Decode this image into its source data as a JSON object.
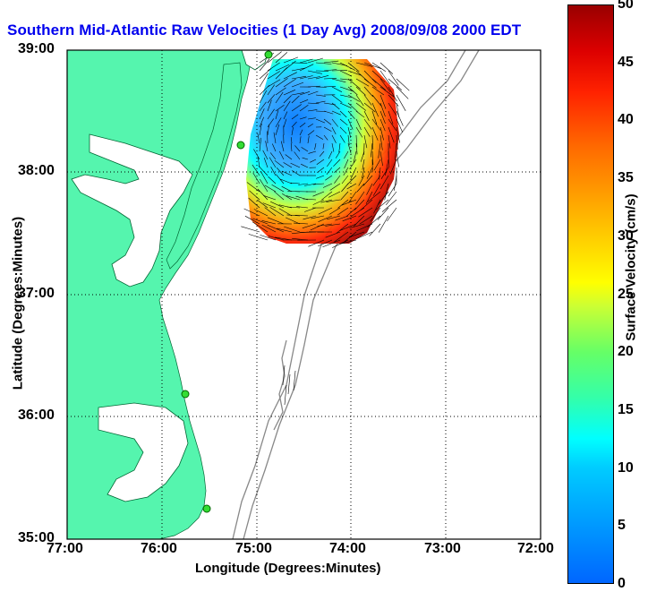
{
  "title": "Southern Mid-Atlantic Raw Velocities (1 Day Avg) 2008/09/08 2000 EDT",
  "map": {
    "xlabel": "Longitude (Degrees:Minutes)",
    "ylabel": "Latitude (Degrees:Minutes)",
    "x_ticks": [
      "77:00",
      "76:00",
      "75:00",
      "74:00",
      "73:00",
      "72:00"
    ],
    "y_ticks": [
      "39:00",
      "38:00",
      "37:00",
      "36:00",
      "35:00"
    ]
  },
  "colorbar": {
    "label": "Surface Velocity (cm/s)",
    "ticks": [
      "0",
      "5",
      "10",
      "15",
      "20",
      "25",
      "30",
      "35",
      "40",
      "45",
      "50"
    ],
    "min": 0,
    "max": 50
  },
  "colors": {
    "title": "#0000ee",
    "land": "#55f5ae",
    "bathymetry": "#888888",
    "site_marker": "#33dd33"
  }
}
